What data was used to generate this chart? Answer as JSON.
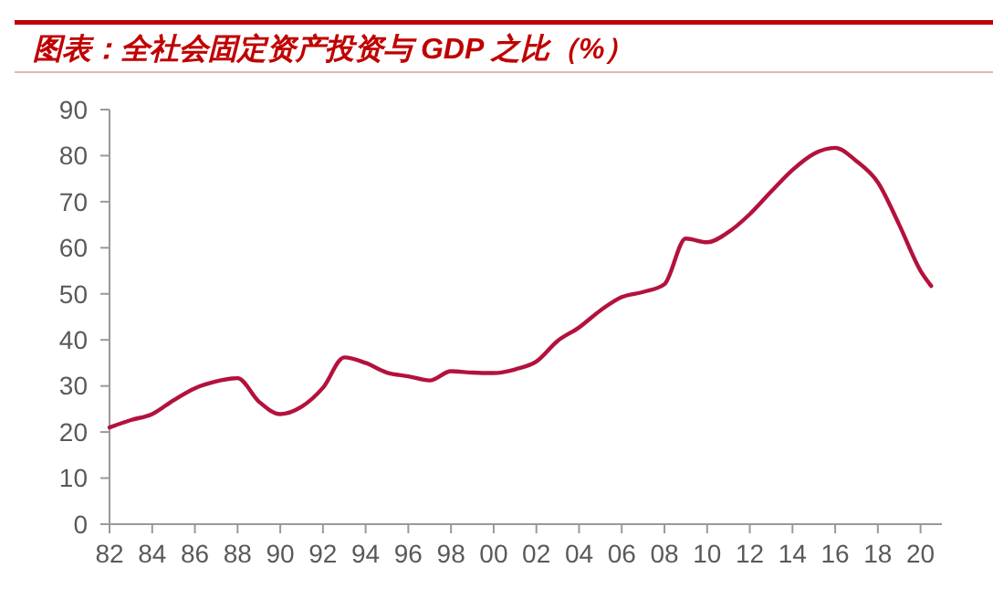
{
  "chart_data": {
    "type": "line",
    "title": "图表：全社会固定资产投资与 GDP 之比（%）",
    "x": [
      1982,
      1983,
      1984,
      1985,
      1986,
      1987,
      1988,
      1989,
      1990,
      1991,
      1992,
      1993,
      1994,
      1995,
      1996,
      1997,
      1998,
      1999,
      2000,
      2001,
      2002,
      2003,
      2004,
      2005,
      2006,
      2007,
      2008,
      2009,
      2010,
      2011,
      2012,
      2013,
      2014,
      2015,
      2016,
      2017,
      2018,
      2019,
      2020,
      2020.5
    ],
    "series": [
      {
        "color": "#b3123c",
        "values": [
          21,
          22.6,
          23.9,
          26.9,
          29.5,
          31,
          31.7,
          26.6,
          23.9,
          25.5,
          29.6,
          36.2,
          35,
          32.9,
          32.1,
          31.2,
          33.2,
          32.9,
          32.8,
          33.6,
          35.3,
          39.8,
          42.7,
          46.4,
          49.3,
          50.4,
          52.1,
          62,
          61.2,
          63.4,
          67.3,
          72.2,
          76.9,
          80.4,
          81.7,
          78.8,
          74.2,
          65,
          55,
          51.7
        ]
      }
    ],
    "xlim": [
      1982,
      2021
    ],
    "xticks": [
      {
        "value": 1982,
        "label": "82"
      },
      {
        "value": 1984,
        "label": "84"
      },
      {
        "value": 1986,
        "label": "86"
      },
      {
        "value": 1988,
        "label": "88"
      },
      {
        "value": 1990,
        "label": "90"
      },
      {
        "value": 1992,
        "label": "92"
      },
      {
        "value": 1994,
        "label": "94"
      },
      {
        "value": 1996,
        "label": "96"
      },
      {
        "value": 1998,
        "label": "98"
      },
      {
        "value": 2000,
        "label": "00"
      },
      {
        "value": 2002,
        "label": "02"
      },
      {
        "value": 2004,
        "label": "04"
      },
      {
        "value": 2006,
        "label": "06"
      },
      {
        "value": 2008,
        "label": "08"
      },
      {
        "value": 2010,
        "label": "10"
      },
      {
        "value": 2012,
        "label": "12"
      },
      {
        "value": 2014,
        "label": "14"
      },
      {
        "value": 2016,
        "label": "16"
      },
      {
        "value": 2018,
        "label": "18"
      },
      {
        "value": 2020,
        "label": "20"
      }
    ],
    "ylim": [
      0,
      90
    ],
    "yticks": [
      0,
      10,
      20,
      30,
      40,
      50,
      60,
      70,
      80,
      90
    ],
    "line_style": "solid"
  }
}
